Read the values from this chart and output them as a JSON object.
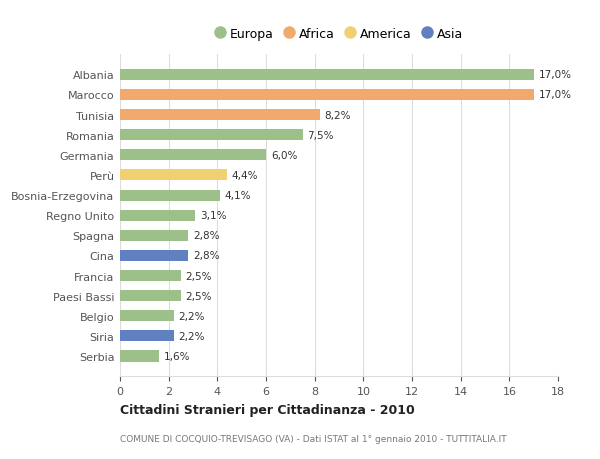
{
  "countries": [
    "Albania",
    "Marocco",
    "Tunisia",
    "Romania",
    "Germania",
    "Perù",
    "Bosnia-Erzegovina",
    "Regno Unito",
    "Spagna",
    "Cina",
    "Francia",
    "Paesi Bassi",
    "Belgio",
    "Siria",
    "Serbia"
  ],
  "values": [
    17.0,
    17.0,
    8.2,
    7.5,
    6.0,
    4.4,
    4.1,
    3.1,
    2.8,
    2.8,
    2.5,
    2.5,
    2.2,
    2.2,
    1.6
  ],
  "continents": [
    "Europa",
    "Africa",
    "Africa",
    "Europa",
    "Europa",
    "America",
    "Europa",
    "Europa",
    "Europa",
    "Asia",
    "Europa",
    "Europa",
    "Europa",
    "Asia",
    "Europa"
  ],
  "colors": {
    "Europa": "#9dc08b",
    "Africa": "#f2a96e",
    "America": "#f0d070",
    "Asia": "#6080c0"
  },
  "legend_order": [
    "Europa",
    "Africa",
    "America",
    "Asia"
  ],
  "labels": [
    "17,0%",
    "17,0%",
    "8,2%",
    "7,5%",
    "6,0%",
    "4,4%",
    "4,1%",
    "3,1%",
    "2,8%",
    "2,8%",
    "2,5%",
    "2,5%",
    "2,2%",
    "2,2%",
    "1,6%"
  ],
  "title": "Cittadini Stranieri per Cittadinanza - 2010",
  "subtitle": "COMUNE DI COCQUIO-TREVISAGO (VA) - Dati ISTAT al 1° gennaio 2010 - TUTTITALIA.IT",
  "xlim": [
    0,
    18
  ],
  "xticks": [
    0,
    2,
    4,
    6,
    8,
    10,
    12,
    14,
    16,
    18
  ],
  "bg_color": "#ffffff",
  "grid_color": "#dddddd"
}
